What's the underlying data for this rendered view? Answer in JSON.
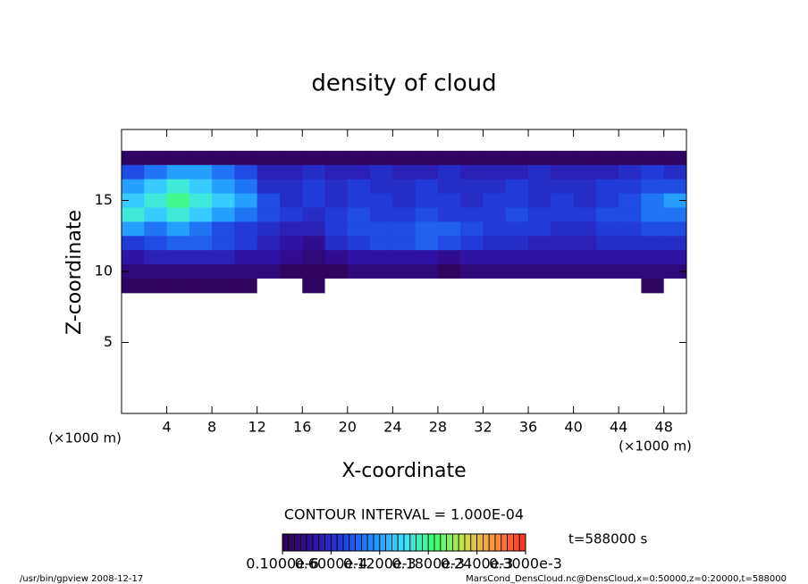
{
  "chart_data": {
    "type": "heatmap",
    "title": "density of cloud",
    "xlabel": "X-coordinate",
    "ylabel": "Z-coordinate",
    "xunit": "(×1000 m)",
    "yunit": "(×1000 m)",
    "contour_interval": "CONTOUR INTERVAL = 1.000E-04",
    "time_label": "t=588000 s",
    "footer_left": "/usr/bin/gpview  2008-12-17",
    "footer_right": "MarsCond_DensCloud.nc@DensCloud,x=0:50000,z=0:20000,t=588000",
    "xlim": [
      0,
      50
    ],
    "ylim": [
      0,
      20
    ],
    "xticks": [
      4,
      8,
      12,
      16,
      20,
      24,
      28,
      32,
      36,
      40,
      44,
      48
    ],
    "yticks": [
      5,
      10,
      15
    ],
    "x": [
      1,
      3,
      5,
      7,
      9,
      11,
      13,
      15,
      17,
      19,
      21,
      23,
      25,
      27,
      29,
      31,
      33,
      35,
      37,
      39,
      41,
      43,
      45,
      47,
      49
    ],
    "y": [
      18,
      17,
      16,
      15,
      14,
      13,
      12,
      11,
      10,
      9
    ],
    "zlim": [
      0,
      0.0003
    ],
    "colormap": [
      "#30004a",
      "#3010a0",
      "#2040e0",
      "#2090ff",
      "#40e0ff",
      "#40ff70",
      "#d0e050",
      "#ff9040",
      "#ff3020"
    ],
    "zticks": [
      {
        "value": 1e-07,
        "label": "0.1000e-6"
      },
      {
        "value": 6e-05,
        "label": "0.6000e-4"
      },
      {
        "value": 0.00012,
        "label": "0.1200e-3"
      },
      {
        "value": 0.00018,
        "label": "0.1800e-3"
      },
      {
        "value": 0.00024,
        "label": "0.2400e-3"
      },
      {
        "value": 0.0003,
        "label": "0.3000e-3"
      }
    ],
    "values": [
      [
        1e-05,
        1e-05,
        1e-05,
        1e-05,
        1e-05,
        1e-05,
        1e-05,
        1e-05,
        1e-05,
        1e-05,
        1e-05,
        1e-05,
        1e-05,
        1e-05,
        1e-05,
        1e-05,
        1e-05,
        1e-05,
        1e-05,
        1e-05,
        1e-05,
        1e-05,
        1e-05,
        1e-05,
        1e-05
      ],
      [
        8e-05,
        0.0001,
        0.00012,
        0.00012,
        0.0001,
        8e-05,
        5e-05,
        5e-05,
        6e-05,
        5e-05,
        5e-05,
        6e-05,
        5e-05,
        5e-05,
        6e-05,
        5e-05,
        5e-05,
        5e-05,
        6e-05,
        5e-05,
        5e-05,
        5e-05,
        6e-05,
        7e-05,
        6e-05
      ],
      [
        0.00012,
        0.00014,
        0.00016,
        0.00014,
        0.00012,
        0.0001,
        6e-05,
        6e-05,
        7e-05,
        6e-05,
        7e-05,
        6e-05,
        6e-05,
        7e-05,
        6e-05,
        6e-05,
        6e-05,
        7e-05,
        6e-05,
        6e-05,
        6e-05,
        7e-05,
        7e-05,
        8e-05,
        8e-05
      ],
      [
        0.00014,
        0.00016,
        0.00018,
        0.00016,
        0.00014,
        0.00012,
        8e-05,
        6e-05,
        7e-05,
        6e-05,
        7e-05,
        7e-05,
        6e-05,
        7e-05,
        7e-05,
        6e-05,
        7e-05,
        7e-05,
        6e-05,
        7e-05,
        6e-05,
        7e-05,
        8e-05,
        0.0001,
        0.00012
      ],
      [
        0.00016,
        0.00014,
        0.00016,
        0.00014,
        0.00012,
        0.0001,
        8e-05,
        7e-05,
        6e-05,
        7e-05,
        8e-05,
        7e-05,
        7e-05,
        8e-05,
        7e-05,
        7e-05,
        7e-05,
        8e-05,
        7e-05,
        7e-05,
        7e-05,
        8e-05,
        8e-05,
        0.0001,
        0.0001
      ],
      [
        0.00012,
        0.0001,
        0.00012,
        0.0001,
        8e-05,
        7e-05,
        6e-05,
        5e-05,
        5e-05,
        7e-05,
        8e-05,
        8e-05,
        8e-05,
        9e-05,
        9e-05,
        8e-05,
        7e-05,
        7e-05,
        7e-05,
        6e-05,
        6e-05,
        7e-05,
        7e-05,
        8e-05,
        8e-05
      ],
      [
        7e-05,
        8e-05,
        9e-05,
        9e-05,
        8e-05,
        7e-05,
        5e-05,
        4e-05,
        3e-05,
        6e-05,
        7e-05,
        8e-05,
        8e-05,
        9e-05,
        8e-05,
        7e-05,
        6e-05,
        6e-05,
        5e-05,
        5e-05,
        5e-05,
        6e-05,
        6e-05,
        6e-05,
        6e-05
      ],
      [
        4e-05,
        5e-05,
        5e-05,
        5e-05,
        5e-05,
        4e-05,
        4e-05,
        3e-05,
        2e-05,
        3e-05,
        4e-05,
        4e-05,
        4e-05,
        4e-05,
        3e-05,
        4e-05,
        4e-05,
        4e-05,
        4e-05,
        4e-05,
        4e-05,
        4e-05,
        4e-05,
        4e-05,
        4e-05
      ],
      [
        2e-05,
        2e-05,
        2e-05,
        2e-05,
        2e-05,
        2e-05,
        2e-05,
        1e-05,
        1e-05,
        1e-05,
        2e-05,
        2e-05,
        2e-05,
        2e-05,
        1e-05,
        2e-05,
        2e-05,
        2e-05,
        2e-05,
        2e-05,
        2e-05,
        2e-05,
        2e-05,
        2e-05,
        2e-05
      ],
      [
        1e-05,
        1e-05,
        1e-05,
        1e-05,
        1e-05,
        1e-05,
        0,
        0,
        1e-05,
        0,
        0,
        0,
        0,
        0,
        0,
        0,
        0,
        0,
        0,
        0,
        0,
        0,
        0,
        1e-05,
        0
      ]
    ]
  }
}
